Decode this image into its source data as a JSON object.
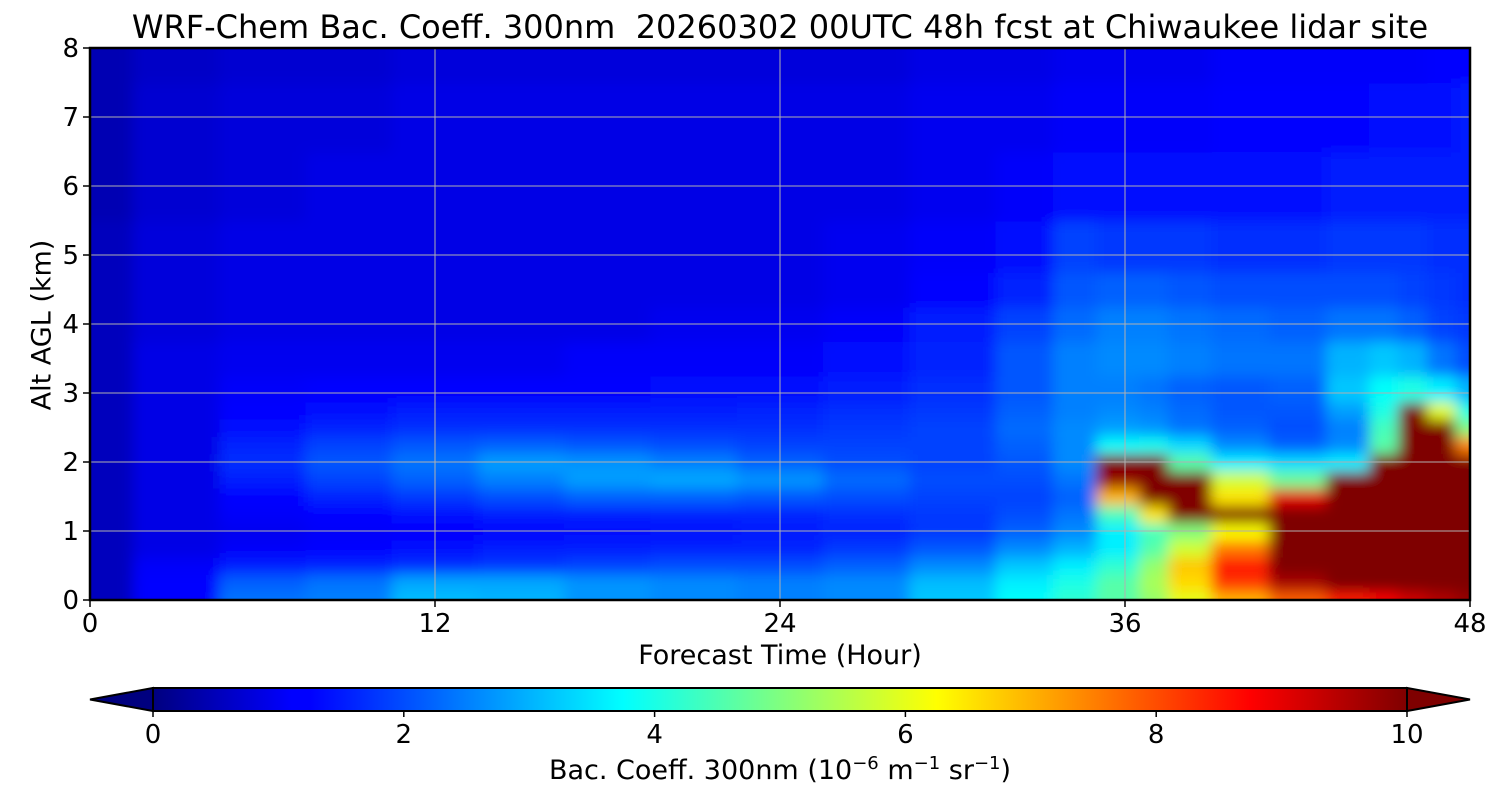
{
  "chart_data": {
    "type": "heatmap",
    "title": "WRF-Chem Bac. Coeff. 300nm  20260302 00UTC 48h fcst at Chiwaukee lidar site",
    "xlabel": "Forecast Time (Hour)",
    "ylabel": "Alt AGL (km)",
    "xlim": [
      0,
      48
    ],
    "ylim": [
      0,
      8
    ],
    "x_ticks": [
      "0",
      "12",
      "24",
      "36",
      "48"
    ],
    "y_ticks": [
      "0",
      "1",
      "2",
      "3",
      "4",
      "5",
      "6",
      "7",
      "8"
    ],
    "grid": true,
    "colorbar": {
      "label_main": "Bac. Coeff. 300nm  (10",
      "label_exp1": "−6",
      "label_mid": " m",
      "label_exp2": "−1",
      "label_mid2": " sr",
      "label_exp3": "−1",
      "label_end": ")",
      "range": [
        0,
        10
      ],
      "ticks": [
        "0",
        "2",
        "4",
        "6",
        "8",
        "10"
      ],
      "extend": "both",
      "colormap": "jet"
    },
    "x_hours": [
      0,
      3,
      6,
      9,
      12,
      15,
      18,
      21,
      24,
      27,
      30,
      33,
      34,
      36,
      37,
      38,
      40,
      42,
      44,
      45,
      46,
      47,
      48
    ],
    "altitudes_km": [
      0,
      0.25,
      0.5,
      0.75,
      1.0,
      1.25,
      1.5,
      1.75,
      2.0,
      2.25,
      2.5,
      2.75,
      3.0,
      3.5,
      4.0,
      4.5,
      5.0,
      6.0,
      7.0,
      8.0
    ],
    "values": [
      [
        0.6,
        1.3,
        2.4,
        2.5,
        3.1,
        3.0,
        2.7,
        2.6,
        2.5,
        2.6,
        3.2,
        3.8,
        4.2,
        4.6,
        5.2,
        6.0,
        7.0,
        7.8,
        8.5,
        8.8,
        9.2,
        9.5,
        9.8
      ],
      [
        0.6,
        1.3,
        2.2,
        2.4,
        2.9,
        2.9,
        2.7,
        2.6,
        2.5,
        2.6,
        3.1,
        3.6,
        4.0,
        4.6,
        5.4,
        6.6,
        8.2,
        9.6,
        10.5,
        10.8,
        11.0,
        11.2,
        10.5
      ],
      [
        0.6,
        1.2,
        1.5,
        1.6,
        1.7,
        1.8,
        1.9,
        2.0,
        2.0,
        2.2,
        2.6,
        3.2,
        3.6,
        4.2,
        5.2,
        6.8,
        8.6,
        10.5,
        11.0,
        11.2,
        11.3,
        11.4,
        11.0
      ],
      [
        0.6,
        1.0,
        1.2,
        1.3,
        1.4,
        1.5,
        1.5,
        1.6,
        1.6,
        1.8,
        2.1,
        2.6,
        3.0,
        3.6,
        4.6,
        5.8,
        7.6,
        10.6,
        11.2,
        11.3,
        11.4,
        11.5,
        11.5
      ],
      [
        0.6,
        1.0,
        1.1,
        1.2,
        1.3,
        1.3,
        1.4,
        1.4,
        1.5,
        1.6,
        1.8,
        2.2,
        2.6,
        3.6,
        4.4,
        5.0,
        6.2,
        10.8,
        11.3,
        11.4,
        11.5,
        11.6,
        11.6
      ],
      [
        0.6,
        1.0,
        1.2,
        1.3,
        1.4,
        1.5,
        1.5,
        1.6,
        1.6,
        1.7,
        1.8,
        2.0,
        2.4,
        4.4,
        6.5,
        10.5,
        10.8,
        11.0,
        11.2,
        11.3,
        11.4,
        11.5,
        11.5
      ],
      [
        0.6,
        1.0,
        1.3,
        1.6,
        1.8,
        2.0,
        2.2,
        2.2,
        2.1,
        2.0,
        1.9,
        1.9,
        2.2,
        7.0,
        10.8,
        10.0,
        6.5,
        9.0,
        11.0,
        11.2,
        11.3,
        11.4,
        11.4
      ],
      [
        0.6,
        1.0,
        1.5,
        1.9,
        2.2,
        2.5,
        2.8,
        2.9,
        2.7,
        2.3,
        2.0,
        2.0,
        2.4,
        9.8,
        10.8,
        10.6,
        5.8,
        4.8,
        10.5,
        11.0,
        11.2,
        11.3,
        11.0
      ],
      [
        0.6,
        1.0,
        1.7,
        2.1,
        2.4,
        2.8,
        2.7,
        2.5,
        2.2,
        2.0,
        1.9,
        2.1,
        2.6,
        11.0,
        11.2,
        4.6,
        3.6,
        3.4,
        3.6,
        10.8,
        11.0,
        11.0,
        10.5
      ],
      [
        0.6,
        1.0,
        1.6,
        1.9,
        2.1,
        2.2,
        2.1,
        2.0,
        1.9,
        1.9,
        1.9,
        2.2,
        2.6,
        3.8,
        3.9,
        3.4,
        2.6,
        2.2,
        2.6,
        4.6,
        10.6,
        11.0,
        7.5
      ],
      [
        0.6,
        1.0,
        1.4,
        1.6,
        1.7,
        1.7,
        1.7,
        1.7,
        1.7,
        1.8,
        1.9,
        2.3,
        2.6,
        2.8,
        2.7,
        2.4,
        2.2,
        2.0,
        2.5,
        4.4,
        11.2,
        11.2,
        5.0
      ],
      [
        0.6,
        1.0,
        1.3,
        1.4,
        1.5,
        1.5,
        1.5,
        1.5,
        1.6,
        1.7,
        1.8,
        2.2,
        2.5,
        2.6,
        2.5,
        2.3,
        2.1,
        2.1,
        2.8,
        4.0,
        10.6,
        6.0,
        4.0
      ],
      [
        0.6,
        1.0,
        1.2,
        1.3,
        1.3,
        1.3,
        1.3,
        1.4,
        1.4,
        1.5,
        1.7,
        2.1,
        2.5,
        2.5,
        2.4,
        2.2,
        2.1,
        2.2,
        3.2,
        3.8,
        4.0,
        3.6,
        3.0
      ],
      [
        0.6,
        1.0,
        1.1,
        1.1,
        1.1,
        1.1,
        1.2,
        1.2,
        1.2,
        1.4,
        1.6,
        2.1,
        2.5,
        2.6,
        2.6,
        2.5,
        2.4,
        2.4,
        3.0,
        3.2,
        3.0,
        2.4,
        2.0
      ],
      [
        0.6,
        0.9,
        1.0,
        1.0,
        1.0,
        1.0,
        1.0,
        1.1,
        1.1,
        1.2,
        1.5,
        1.9,
        2.3,
        2.5,
        2.5,
        2.4,
        2.3,
        2.2,
        2.4,
        2.4,
        2.2,
        1.9,
        1.8
      ],
      [
        0.6,
        0.9,
        1.0,
        1.0,
        1.0,
        1.0,
        1.0,
        1.0,
        1.0,
        1.1,
        1.3,
        1.6,
        2.1,
        2.2,
        2.2,
        2.1,
        2.0,
        2.0,
        2.0,
        2.0,
        1.9,
        1.8,
        1.7
      ],
      [
        0.6,
        0.9,
        1.0,
        1.0,
        1.0,
        1.0,
        1.0,
        1.0,
        1.0,
        1.1,
        1.2,
        1.4,
        1.9,
        1.8,
        1.8,
        1.8,
        1.7,
        1.7,
        1.8,
        1.8,
        1.8,
        1.7,
        1.7
      ],
      [
        0.5,
        0.8,
        0.9,
        1.0,
        1.0,
        1.0,
        1.0,
        1.0,
        1.0,
        1.0,
        1.1,
        1.2,
        1.4,
        1.4,
        1.4,
        1.4,
        1.4,
        1.4,
        1.5,
        1.5,
        1.5,
        1.5,
        1.5
      ],
      [
        0.5,
        0.8,
        0.9,
        0.9,
        1.0,
        1.0,
        1.0,
        1.0,
        1.0,
        1.0,
        1.1,
        1.1,
        1.2,
        1.2,
        1.2,
        1.2,
        1.3,
        1.3,
        1.3,
        1.4,
        1.4,
        1.4,
        1.5
      ],
      [
        0.5,
        0.7,
        0.8,
        0.8,
        0.9,
        0.9,
        0.9,
        0.9,
        0.9,
        0.9,
        1.0,
        1.0,
        1.1,
        1.1,
        1.1,
        1.1,
        1.2,
        1.2,
        1.2,
        1.2,
        1.2,
        1.3,
        1.3
      ]
    ]
  }
}
